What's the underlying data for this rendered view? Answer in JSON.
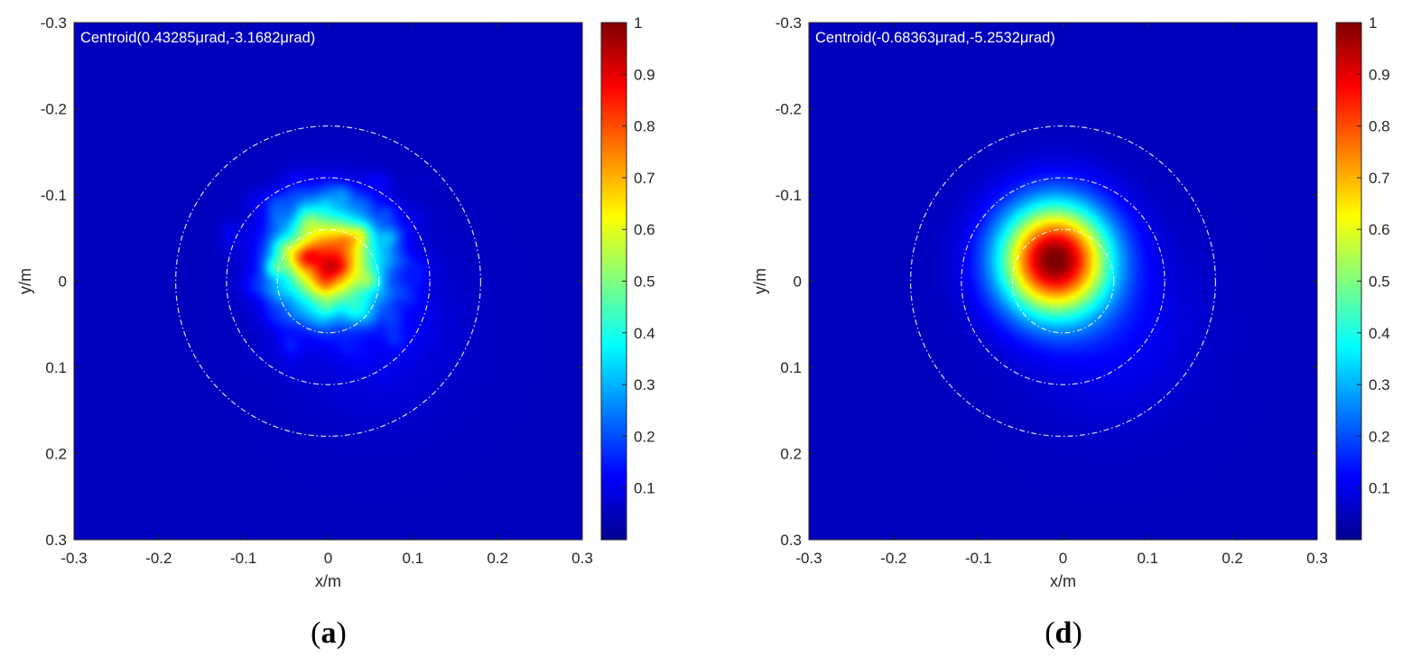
{
  "chart_data": [
    {
      "type": "heatmap",
      "panel_label": "a",
      "annotation": "Centroid(0.43285μrad,-3.1682μrad)",
      "xlabel": "x/m",
      "ylabel": "y/m",
      "xlim": [
        -0.3,
        0.3
      ],
      "ylim": [
        -0.3,
        0.3
      ],
      "y_reversed": true,
      "x_ticks": [
        "-0.3",
        "-0.2",
        "-0.1",
        "0",
        "0.1",
        "0.2",
        "0.3"
      ],
      "y_ticks": [
        "-0.3",
        "-0.2",
        "-0.1",
        "0",
        "0.1",
        "0.2",
        "0.3"
      ],
      "colormap": "jet",
      "colorbar": {
        "min": 0,
        "max": 1,
        "ticks": [
          "0.1",
          "0.2",
          "0.3",
          "0.4",
          "0.5",
          "0.6",
          "0.7",
          "0.8",
          "0.9",
          "1"
        ]
      },
      "spot": {
        "center": [
          0.0,
          -0.025
        ],
        "sigma": 0.04,
        "peak": 1.0,
        "speckle": true
      },
      "circles": {
        "center": [
          0,
          0
        ],
        "radii": [
          0.06,
          0.12,
          0.18
        ],
        "style": "dashed",
        "color": "#ffffff"
      }
    },
    {
      "type": "heatmap",
      "panel_label": "d",
      "annotation": "Centroid(-0.68363μrad,-5.2532μrad)",
      "xlabel": "x/m",
      "ylabel": "y/m",
      "xlim": [
        -0.3,
        0.3
      ],
      "ylim": [
        -0.3,
        0.3
      ],
      "y_reversed": true,
      "x_ticks": [
        "-0.3",
        "-0.2",
        "-0.1",
        "0",
        "0.1",
        "0.2",
        "0.3"
      ],
      "y_ticks": [
        "-0.3",
        "-0.2",
        "-0.1",
        "0",
        "0.1",
        "0.2",
        "0.3"
      ],
      "colormap": "jet",
      "colorbar": {
        "min": 0,
        "max": 1,
        "ticks": [
          "0.1",
          "0.2",
          "0.3",
          "0.4",
          "0.5",
          "0.6",
          "0.7",
          "0.8",
          "0.9",
          "1"
        ]
      },
      "spot": {
        "center": [
          -0.01,
          -0.025
        ],
        "sigma": 0.045,
        "peak": 1.0,
        "speckle": false
      },
      "circles": {
        "center": [
          0,
          0
        ],
        "radii": [
          0.06,
          0.12,
          0.18
        ],
        "style": "dashed",
        "color": "#ffffff"
      }
    }
  ]
}
